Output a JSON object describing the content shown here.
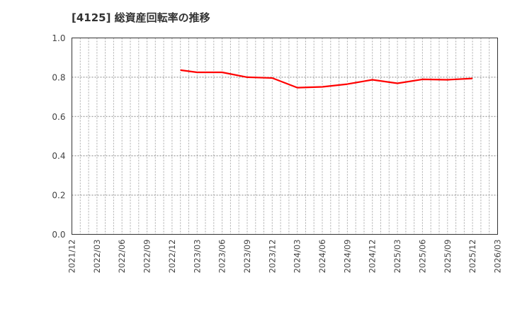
{
  "title": "[4125]  総資産回転率の推移",
  "chart_data": {
    "type": "line",
    "title": "[4125]  総資産回転率の推移",
    "xlabel": "",
    "ylabel": "",
    "ylim": [
      0.0,
      1.0
    ],
    "yticks": [
      "0.0",
      "0.2",
      "0.4",
      "0.6",
      "0.8",
      "1.0"
    ],
    "xticks": [
      "2021/12",
      "2022/03",
      "2022/06",
      "2022/09",
      "2022/12",
      "2023/03",
      "2023/06",
      "2023/09",
      "2023/12",
      "2024/03",
      "2024/06",
      "2024/09",
      "2024/12",
      "2025/03",
      "2025/06",
      "2025/09",
      "2025/12",
      "2026/03"
    ],
    "grid": true,
    "legend": null,
    "series": [
      {
        "name": "総資産回転率",
        "color": "#ff0000",
        "x": [
          "2023/01",
          "2023/03",
          "2023/06",
          "2023/09",
          "2023/12",
          "2024/03",
          "2024/06",
          "2024/09",
          "2024/12",
          "2025/03",
          "2025/06",
          "2025/09",
          "2025/12"
        ],
        "values": [
          0.836,
          0.825,
          0.825,
          0.8,
          0.796,
          0.747,
          0.751,
          0.765,
          0.787,
          0.769,
          0.789,
          0.787,
          0.794
        ]
      }
    ]
  }
}
